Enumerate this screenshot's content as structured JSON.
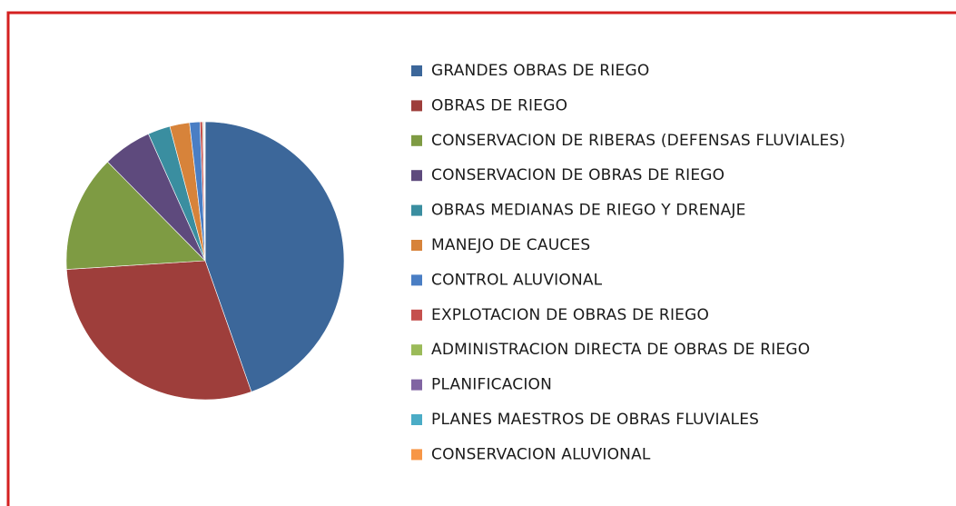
{
  "chart_data": {
    "type": "pie",
    "categories": [
      "GRANDES OBRAS DE RIEGO",
      "OBRAS DE RIEGO",
      "CONSERVACION DE RIBERAS (DEFENSAS FLUVIALES)",
      "CONSERVACION DE OBRAS DE RIEGO",
      "OBRAS MEDIANAS DE RIEGO Y DRENAJE",
      "MANEJO DE CAUCES",
      "CONTROL ALUVIONAL",
      "EXPLOTACION DE OBRAS DE RIEGO",
      "ADMINISTRACION DIRECTA DE OBRAS DE RIEGO",
      "PLANIFICACION",
      "PLANES MAESTROS DE OBRAS FLUVIALES",
      "CONSERVACION ALUVIONAL"
    ],
    "values": [
      44.6,
      29.4,
      13.6,
      5.7,
      2.6,
      2.3,
      1.2,
      0.3,
      0.1,
      0.1,
      0.05,
      0.05
    ],
    "colors": [
      "#3c679a",
      "#9e3e3b",
      "#7e9b43",
      "#5e4a7d",
      "#3a8ea0",
      "#d7833a",
      "#4a7ec4",
      "#c5504d",
      "#9bbb59",
      "#8064a2",
      "#4bacc6",
      "#f79646"
    ],
    "legend": "right"
  }
}
